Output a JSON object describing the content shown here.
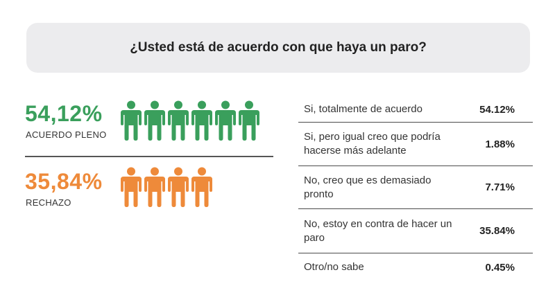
{
  "header": {
    "title": "¿Usted está de acuerdo con que haya un paro?"
  },
  "summary": [
    {
      "percent": "54,12%",
      "label": "ACUERDO PLENO",
      "icon_count": 6,
      "color": "#3a9f5c",
      "icon": "person-icon"
    },
    {
      "percent": "35,84%",
      "label": "RECHAZO",
      "icon_count": 4,
      "color": "#ee8a3a",
      "icon": "person-icon"
    }
  ],
  "chart_data": {
    "type": "table",
    "title": "¿Usted está de acuerdo con que haya un paro?",
    "rows": [
      {
        "label": "Si, totalmente de acuerdo",
        "value": 54.12,
        "display": "54.12%"
      },
      {
        "label": "Si, pero igual creo que podría hacerse más adelante",
        "value": 1.88,
        "display": "1.88%"
      },
      {
        "label": "No, creo que es demasiado pronto",
        "value": 7.71,
        "display": "7.71%"
      },
      {
        "label": "No, estoy en contra de hacer un paro",
        "value": 35.84,
        "display": "35.84%"
      },
      {
        "label": "Otro/no sabe",
        "value": 0.45,
        "display": "0.45%"
      }
    ]
  }
}
